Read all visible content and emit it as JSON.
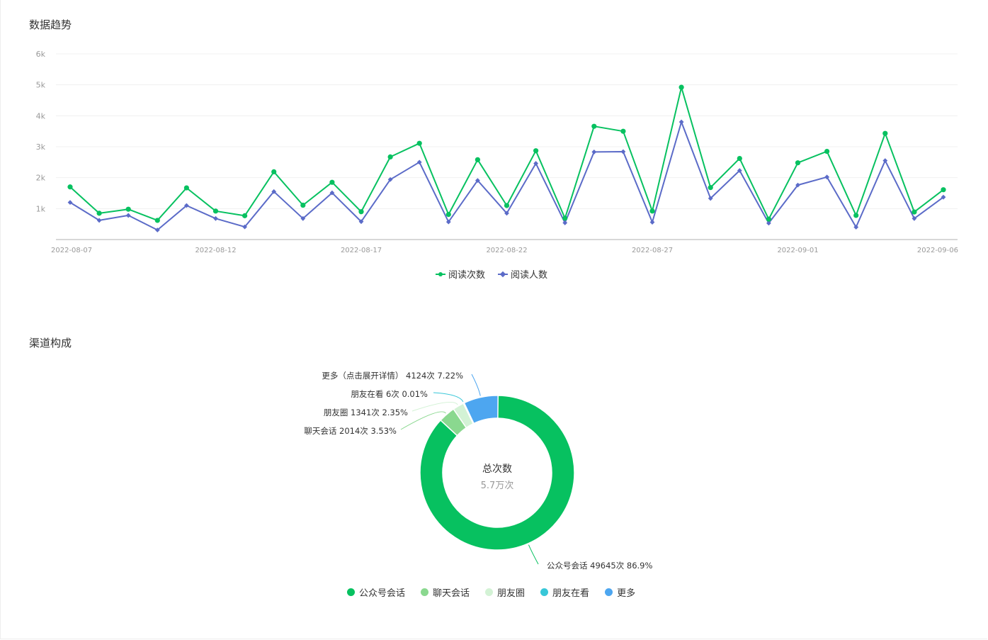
{
  "trend": {
    "title": "数据趋势"
  },
  "channels": {
    "title": "渠道构成"
  },
  "chart_data": [
    {
      "type": "line",
      "title": "数据趋势",
      "y_ticks": [
        "6k",
        "5k",
        "4k",
        "3k",
        "2k",
        "1k"
      ],
      "y_tick_values": [
        6000,
        5000,
        4000,
        3000,
        2000,
        1000
      ],
      "ylim": [
        0,
        6000
      ],
      "x_tick_labels": [
        "2022-08-07",
        "2022-08-12",
        "2022-08-17",
        "2022-08-22",
        "2022-08-27",
        "2022-09-01",
        "2022-09-06"
      ],
      "x": [
        "2022-08-07",
        "2022-08-08",
        "2022-08-09",
        "2022-08-10",
        "2022-08-11",
        "2022-08-12",
        "2022-08-13",
        "2022-08-14",
        "2022-08-15",
        "2022-08-16",
        "2022-08-17",
        "2022-08-18",
        "2022-08-19",
        "2022-08-20",
        "2022-08-21",
        "2022-08-22",
        "2022-08-23",
        "2022-08-24",
        "2022-08-25",
        "2022-08-26",
        "2022-08-27",
        "2022-08-28",
        "2022-08-29",
        "2022-08-30",
        "2022-08-31",
        "2022-09-01",
        "2022-09-02",
        "2022-09-03",
        "2022-09-04",
        "2022-09-05",
        "2022-09-06"
      ],
      "series": [
        {
          "name": "阅读次数",
          "color": "#07c160",
          "marker": "circle",
          "values": [
            1700,
            850,
            980,
            620,
            1670,
            920,
            770,
            2190,
            1110,
            1850,
            900,
            2670,
            3110,
            810,
            2580,
            1100,
            2870,
            690,
            3660,
            3500,
            920,
            4920,
            1680,
            2620,
            660,
            2480,
            2850,
            780,
            3430,
            890,
            1610
          ]
        },
        {
          "name": "阅读人数",
          "color": "#5b6bc8",
          "marker": "diamond",
          "values": [
            1200,
            620,
            780,
            310,
            1100,
            680,
            410,
            1550,
            680,
            1510,
            580,
            1940,
            2500,
            570,
            1910,
            850,
            2460,
            540,
            2830,
            2840,
            560,
            3800,
            1330,
            2230,
            530,
            1760,
            2020,
            400,
            2550,
            680,
            1370
          ]
        }
      ],
      "legend_position": "bottom-center",
      "grid": true
    },
    {
      "type": "pie",
      "title": "渠道构成",
      "center_label": "总次数",
      "center_value": "5.7万次",
      "slices": [
        {
          "name": "公众号会话",
          "value": 49645,
          "label": "公众号会话 49645次 86.9%",
          "color": "#07c160"
        },
        {
          "name": "聊天会话",
          "value": 2014,
          "label": "聊天会话 2014次 3.53%",
          "color": "#8ad88f"
        },
        {
          "name": "朋友圈",
          "value": 1341,
          "label": "朋友圈 1341次 2.35%",
          "color": "#d3f2d5"
        },
        {
          "name": "朋友在看",
          "value": 6,
          "label": "朋友在看 6次 0.01%",
          "color": "#38c7d8"
        },
        {
          "name": "更多",
          "value": 4124,
          "label": "更多（点击展开详情） 4124次 7.22%",
          "color": "#4da6f0"
        }
      ],
      "legend_position": "bottom-center"
    }
  ]
}
